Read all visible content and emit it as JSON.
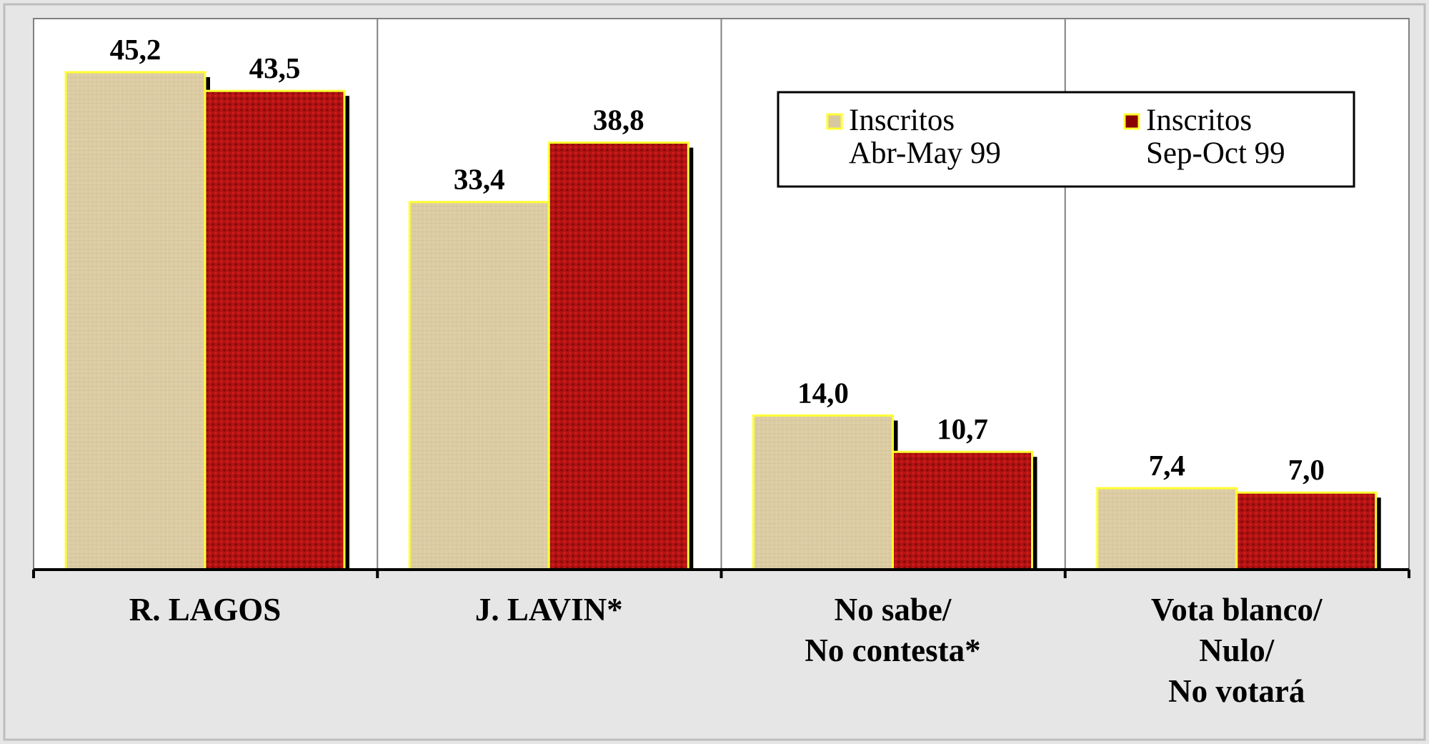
{
  "chart_data": {
    "type": "bar",
    "categories": [
      [
        "R. LAGOS"
      ],
      [
        "J. LAVIN*"
      ],
      [
        "No sabe/",
        "No contesta*"
      ],
      [
        "Vota blanco/",
        "Nulo/",
        "No votará"
      ]
    ],
    "series": [
      {
        "name": [
          "Inscritos",
          "Abr-May 99"
        ],
        "values": [
          45.2,
          33.4,
          14.0,
          7.4
        ],
        "labels": [
          "45,2",
          "33,4",
          "14,0",
          "7,4"
        ],
        "color": "#d9c9a0"
      },
      {
        "name": [
          "Inscritos",
          "Sep-Oct 99"
        ],
        "values": [
          43.5,
          38.8,
          10.7,
          7.0
        ],
        "labels": [
          "43,5",
          "38,8",
          "10,7",
          "7,0"
        ],
        "color": "#b01010"
      }
    ],
    "ylim": [
      0,
      46
    ],
    "grid": "vertical separators between categories",
    "legend": "top-right",
    "bar_outline_color": "#ffff33"
  }
}
